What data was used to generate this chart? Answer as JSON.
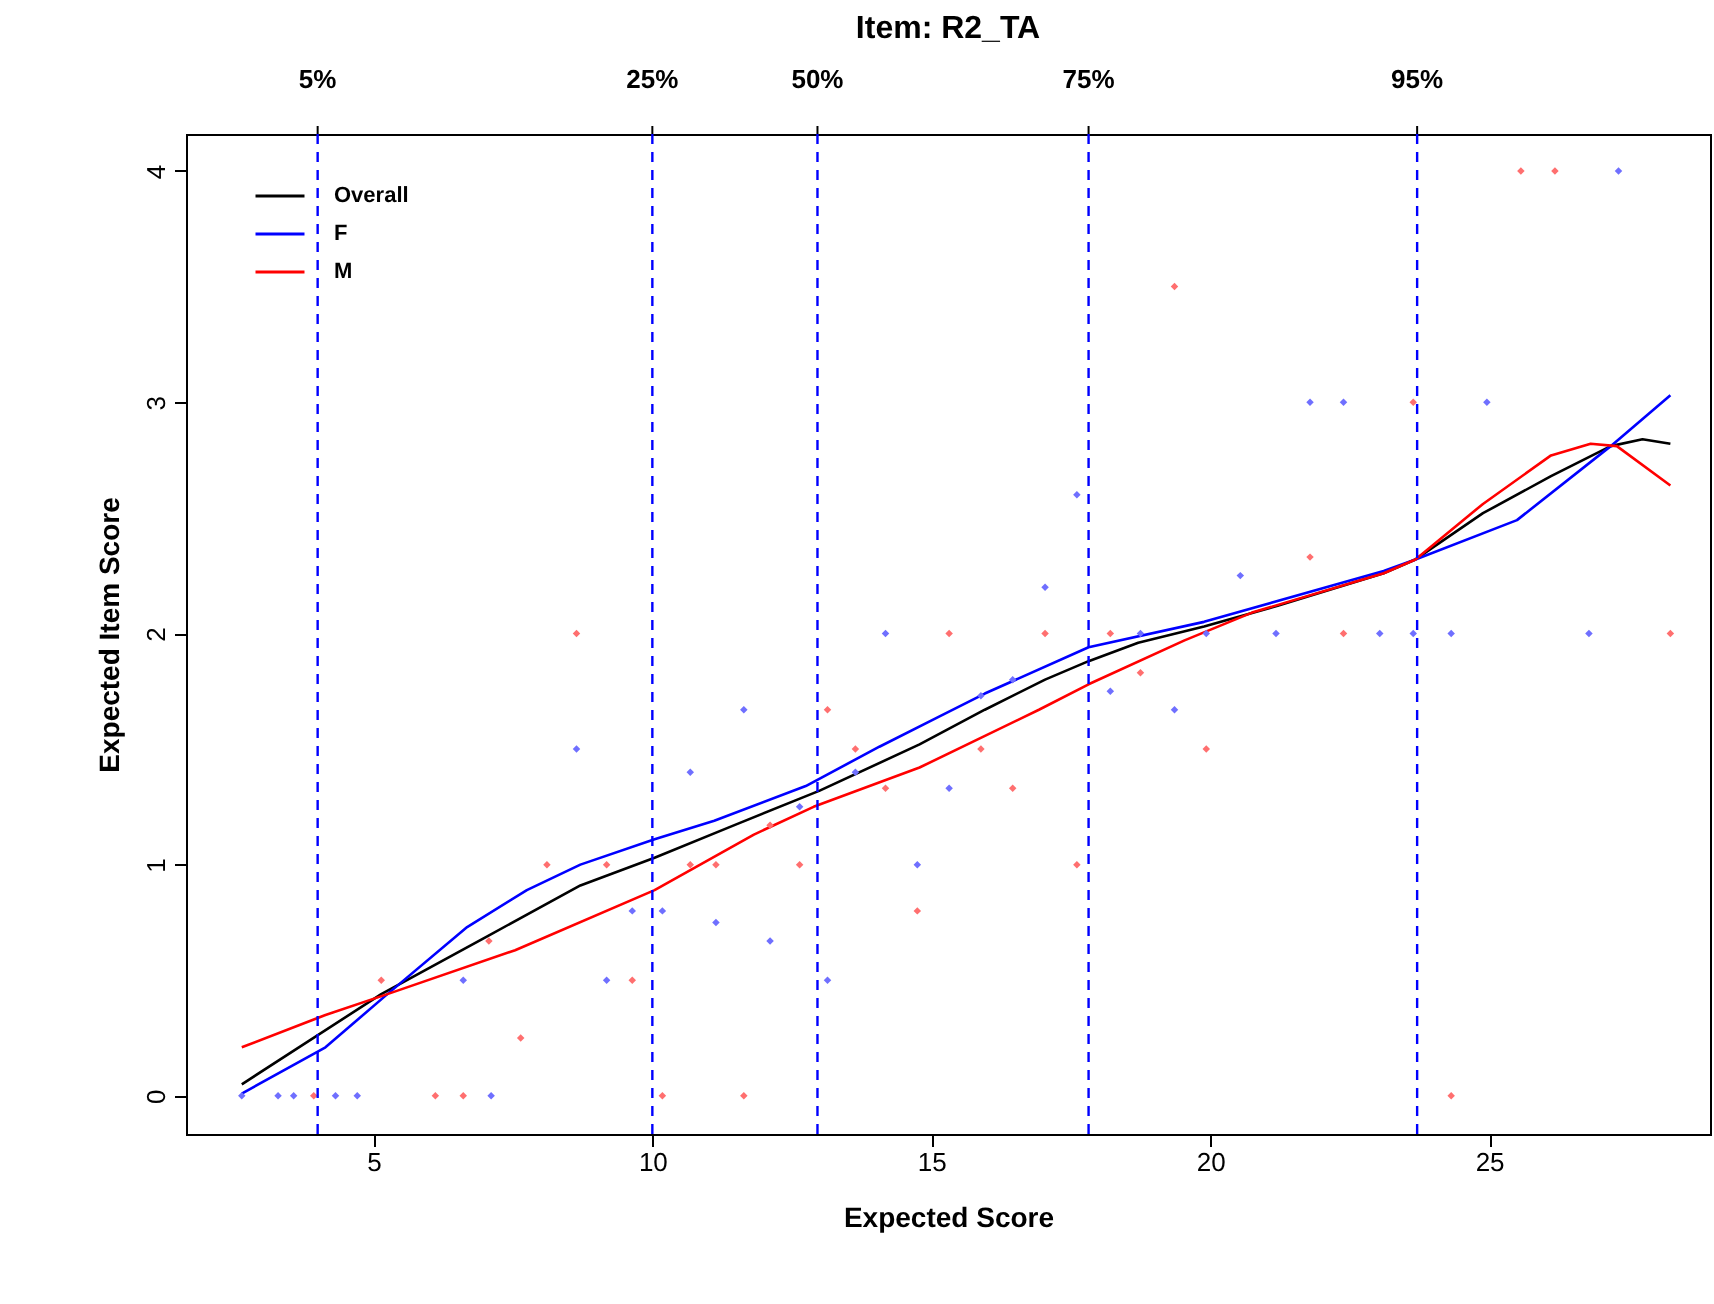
{
  "chart_data": {
    "type": "line",
    "title": "Item:  R2_TA",
    "xlabel": "Expected Score",
    "ylabel": "Expected Item Score",
    "xlim": [
      1.64,
      28.96
    ],
    "ylim": [
      -0.165,
      4.16
    ],
    "xticks": [
      5,
      10,
      15,
      20,
      25
    ],
    "yticks": [
      0,
      1,
      2,
      3,
      4
    ],
    "grid": false,
    "legend": "top left",
    "series": [
      {
        "name": "Overall",
        "type": "line",
        "color": "#000000",
        "x": [
          2.64,
          5.14,
          7.04,
          8.71,
          10.04,
          11.46,
          13.0,
          14.79,
          15.96,
          17.04,
          17.82,
          18.71,
          19.89,
          21.21,
          23.11,
          23.68,
          24.89,
          26.11,
          27.18,
          27.75,
          28.25
        ],
        "values": [
          0.05,
          0.44,
          0.69,
          0.91,
          1.03,
          1.17,
          1.32,
          1.52,
          1.67,
          1.8,
          1.88,
          1.96,
          2.03,
          2.12,
          2.26,
          2.32,
          2.52,
          2.68,
          2.81,
          2.84,
          2.82
        ]
      },
      {
        "name": "F",
        "type": "line",
        "color": "#0000ff",
        "x": [
          2.64,
          4.14,
          5.25,
          6.68,
          7.75,
          8.71,
          10.04,
          11.11,
          12.75,
          14.07,
          15.14,
          15.96,
          17.82,
          19.89,
          23.11,
          23.68,
          25.5,
          27.18,
          28.25
        ],
        "values": [
          0.01,
          0.21,
          0.44,
          0.73,
          0.89,
          1.0,
          1.11,
          1.19,
          1.34,
          1.51,
          1.64,
          1.74,
          1.94,
          2.05,
          2.27,
          2.32,
          2.49,
          2.81,
          3.03
        ]
      },
      {
        "name": "M",
        "type": "line",
        "color": "#ff0000",
        "x": [
          2.64,
          4.14,
          5.25,
          7.54,
          10.04,
          11.82,
          12.89,
          14.79,
          16.93,
          17.82,
          19.54,
          20.75,
          23.11,
          23.68,
          24.89,
          26.11,
          26.82,
          27.29,
          28.25
        ],
        "values": [
          0.21,
          0.35,
          0.44,
          0.63,
          0.89,
          1.13,
          1.25,
          1.42,
          1.67,
          1.78,
          1.97,
          2.09,
          2.26,
          2.32,
          2.56,
          2.77,
          2.82,
          2.81,
          2.64
        ]
      },
      {
        "type": "scatter",
        "marker": "diamond",
        "color": "#6f6fff",
        "x": [
          2.64,
          3.29,
          3.57,
          4.32,
          4.71,
          7.11,
          6.61,
          8.64,
          9.18,
          9.64,
          10.18,
          10.68,
          11.14,
          11.64,
          12.11,
          12.64,
          13.14,
          13.64,
          14.18,
          14.75,
          15.32,
          15.89,
          16.46,
          17.04,
          17.61,
          18.21,
          18.75,
          19.36,
          19.93,
          20.54,
          21.18,
          21.79,
          22.39,
          23.04,
          23.64,
          24.32,
          24.96,
          26.79,
          27.32
        ],
        "values": [
          0,
          0,
          0,
          0,
          0,
          0,
          0.5,
          1.5,
          0.5,
          0.8,
          0.8,
          1.4,
          0.75,
          1.67,
          0.67,
          1.25,
          0.5,
          1.4,
          2,
          1,
          1.33,
          1.73,
          1.8,
          2.2,
          2.6,
          1.75,
          2,
          1.67,
          2,
          2.25,
          2,
          3,
          3,
          2,
          2,
          2,
          3,
          2,
          4
        ]
      },
      {
        "type": "scatter",
        "marker": "diamond",
        "color": "#ff6f6f",
        "x": [
          3.93,
          6.11,
          6.61,
          10.18,
          11.64,
          5.14,
          7.64,
          7.07,
          8.11,
          8.64,
          9.18,
          9.64,
          10.68,
          11.14,
          12.11,
          12.64,
          13.14,
          13.64,
          14.18,
          14.75,
          15.32,
          15.89,
          16.46,
          17.04,
          17.61,
          18.21,
          18.75,
          19.36,
          19.93,
          21.79,
          22.39,
          23.64,
          24.32,
          25.57,
          26.18,
          28.25
        ],
        "values": [
          0,
          0,
          0,
          0,
          0,
          0.5,
          0.25,
          0.67,
          1,
          2,
          1,
          0.5,
          1,
          1,
          1.17,
          1,
          1.67,
          1.5,
          1.33,
          0.8,
          2,
          1.5,
          1.33,
          2,
          1,
          2,
          1.83,
          3.5,
          1.5,
          2.33,
          2,
          3,
          0,
          4,
          4,
          2
        ]
      }
    ],
    "ref_lines": [
      {
        "axis": "x",
        "value": 4,
        "color": "#0000ff",
        "line_style": "dashed"
      },
      {
        "axis": "x",
        "value": 10,
        "color": "#0000ff",
        "line_style": "dashed"
      },
      {
        "axis": "x",
        "value": 12.96,
        "color": "#0000ff",
        "line_style": "dashed"
      },
      {
        "axis": "x",
        "value": 17.82,
        "color": "#0000ff",
        "line_style": "dashed"
      },
      {
        "axis": "x",
        "value": 23.71,
        "color": "#0000ff",
        "line_style": "dashed"
      }
    ],
    "annotations": [
      "5%",
      "25%",
      "50%",
      "75%",
      "95%"
    ]
  }
}
